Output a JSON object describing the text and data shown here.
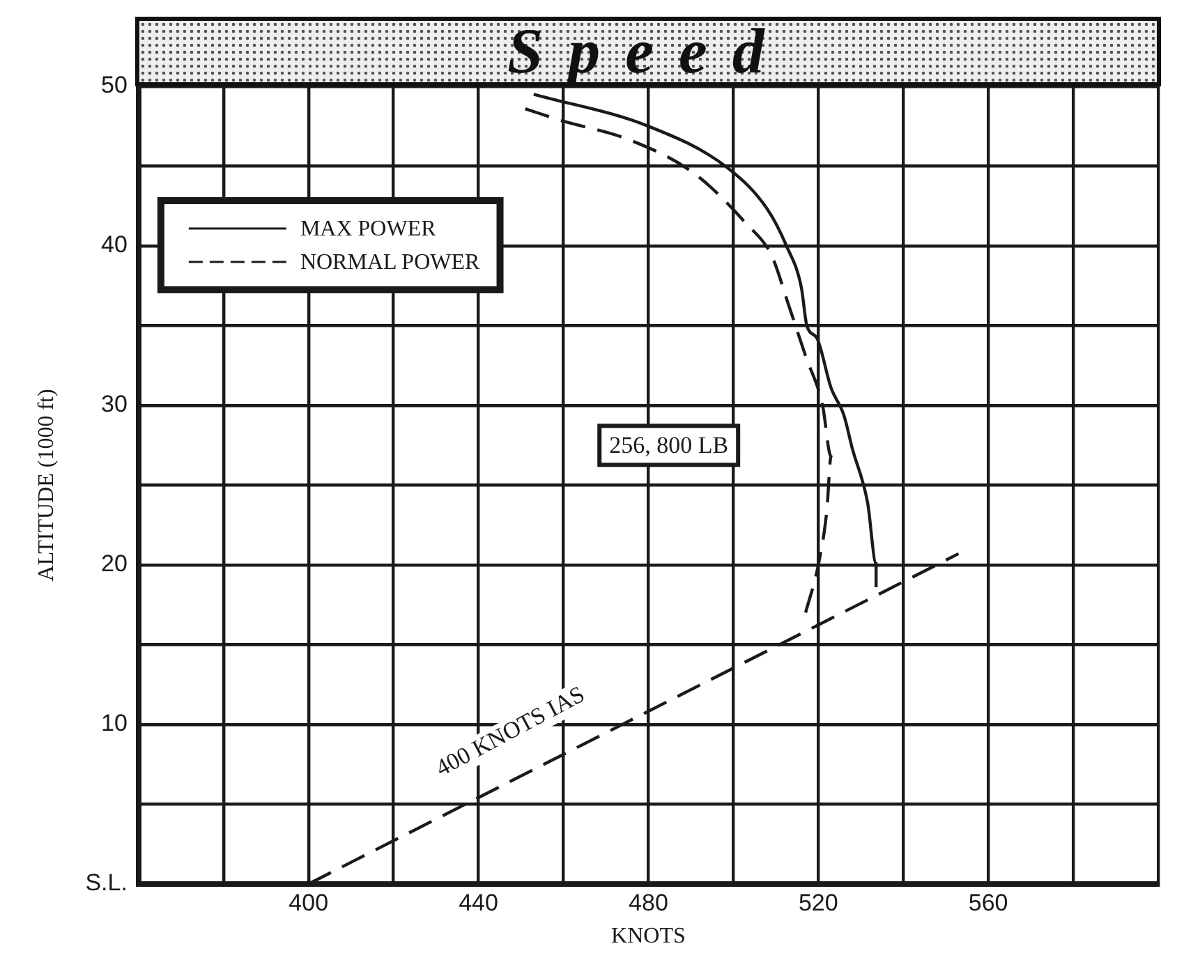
{
  "chart_data": {
    "type": "line",
    "title": "Speed",
    "xlabel": "KNOTS",
    "ylabel": "ALTITUDE (1000 ft)",
    "xlim": [
      360,
      600
    ],
    "xticks": [
      {
        "value": 360,
        "label": null
      },
      {
        "value": 380,
        "label": null
      },
      400,
      {
        "value": 420,
        "label": null
      },
      440,
      {
        "value": 460,
        "label": null
      },
      480,
      {
        "value": 500,
        "label": null
      },
      520,
      {
        "value": 540,
        "label": null
      },
      560,
      {
        "value": 580,
        "label": null
      },
      {
        "value": 600,
        "label": null
      }
    ],
    "ylim": [
      0,
      50
    ],
    "yticks": [
      {
        "value": 0,
        "label": "S.L."
      },
      {
        "value": 5,
        "label": null
      },
      10,
      {
        "value": 15,
        "label": null
      },
      20,
      {
        "value": 25,
        "label": null
      },
      30,
      {
        "value": 35,
        "label": null
      },
      40,
      {
        "value": 45,
        "label": null
      },
      50
    ],
    "grid": true,
    "legend": "top left",
    "marker": "none",
    "series": [
      {
        "name": "MAX POWER",
        "color": "#1a1a1a",
        "line_style": "solid",
        "x": [
          453,
          480,
          498.6,
          508,
          512.5,
          516,
          517.3,
          519.7,
          523,
          526,
          528,
          531.6,
          533.6,
          533.6
        ],
        "values": [
          49.5,
          47.5,
          44.9,
          42.3,
          40,
          37.4,
          35,
          34.2,
          31.1,
          29.4,
          27.3,
          23.9,
          20.1,
          18.6
        ]
      },
      {
        "name": "NORMAL POWER",
        "color": "#1a1a1a",
        "line_style": "dashed",
        "x": [
          451,
          459,
          476,
          491,
          503,
          509,
          513,
          517,
          521,
          523,
          522,
          520,
          517
        ],
        "values": [
          48.6,
          47.9,
          46.6,
          44.5,
          41.4,
          39.4,
          36.3,
          33.1,
          30,
          26.8,
          23.4,
          20,
          17
        ]
      },
      {
        "color": "#1a1a1a",
        "line_style": "dashed",
        "x": [
          400,
          553
        ],
        "values": [
          0,
          20.7
        ]
      }
    ],
    "annotations": [
      "256, 800 LB",
      "400 KNOTS IAS"
    ]
  }
}
